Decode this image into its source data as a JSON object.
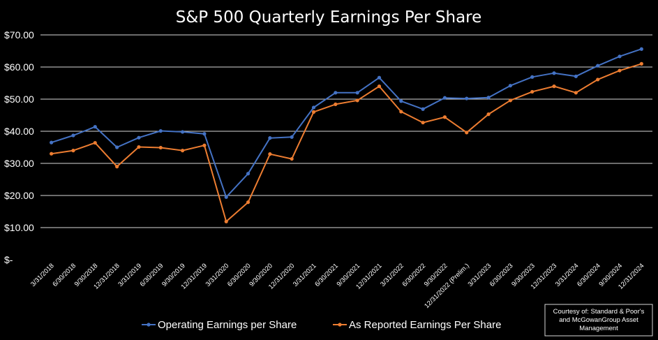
{
  "chart_data": {
    "type": "line",
    "title": "S&P 500 Quarterly Earnings Per Share",
    "xlabel": "",
    "ylabel": "",
    "ylim": [
      0,
      70
    ],
    "y_ticks": [
      "$-",
      "$10.00",
      "$20.00",
      "$30.00",
      "$40.00",
      "$50.00",
      "$60.00",
      "$70.00"
    ],
    "grid": true,
    "legend_position": "bottom",
    "categories": [
      "3/31/2018",
      "6/30/2018",
      "9/30/2018",
      "12/31/2018",
      "3/31/2019",
      "6/30/2019",
      "9/30/2019",
      "12/31/2019",
      "3/31/2020",
      "6/30/2020",
      "9/30/2020",
      "12/31/2020",
      "3/31/2021",
      "6/30/2021",
      "9/30/2021",
      "12/31/2021",
      "3/31/2022",
      "6/30/2022",
      "9/30/2022",
      "12/31/2022 (Prelim.)",
      "3/31/2023",
      "6/30/2023",
      "9/30/2023",
      "12/31/2023",
      "3/31/2024",
      "6/30/2024",
      "9/30/2024",
      "12/31/2024"
    ],
    "series": [
      {
        "name": "Operating Earnings per Share",
        "color": "#4472c4",
        "values": [
          36.5,
          38.7,
          41.4,
          35.0,
          38.0,
          40.1,
          39.8,
          39.2,
          19.5,
          26.8,
          37.9,
          38.2,
          47.4,
          52.0,
          52.0,
          56.7,
          49.4,
          46.9,
          50.4,
          50.2,
          50.5,
          54.2,
          56.9,
          58.1,
          57.1,
          60.4,
          63.3,
          65.6
        ]
      },
      {
        "name": "As Reported Earnings Per Share",
        "color": "#ed7d31",
        "values": [
          33.0,
          34.0,
          36.4,
          29.0,
          35.1,
          34.9,
          34.0,
          35.6,
          11.9,
          17.9,
          32.9,
          31.4,
          46.0,
          48.4,
          49.6,
          54.0,
          46.1,
          42.7,
          44.4,
          39.6,
          45.3,
          49.6,
          52.3,
          54.0,
          52.0,
          56.1,
          58.9,
          61.0
        ]
      }
    ],
    "annotation": "Courtesy of: Standard & Poor's and McGowanGroup Asset Management"
  }
}
